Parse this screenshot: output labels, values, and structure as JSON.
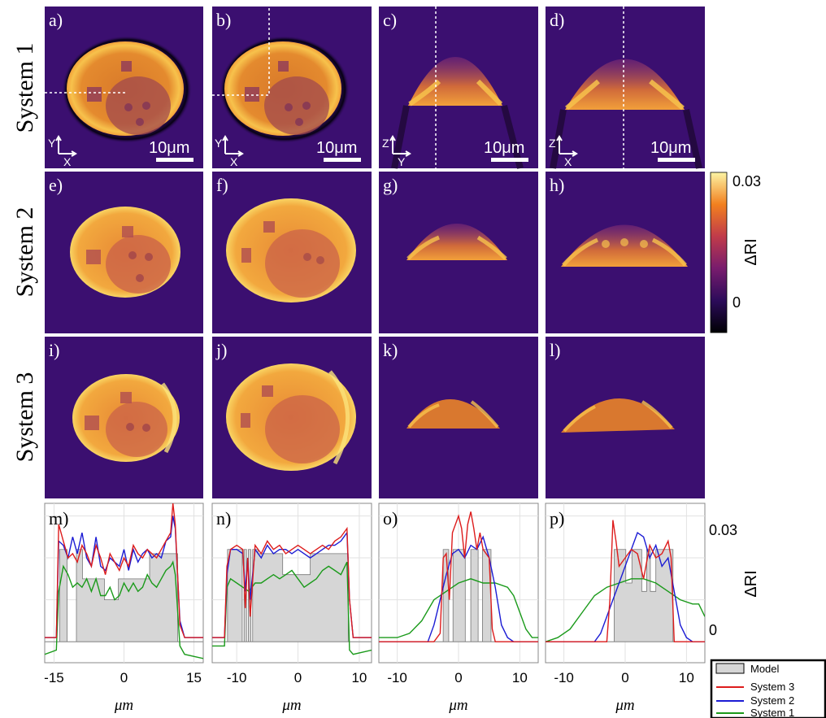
{
  "rows": [
    {
      "label": "System 1",
      "panels": [
        "a)",
        "b)",
        "c)",
        "d)"
      ]
    },
    {
      "label": "System 2",
      "panels": [
        "e)",
        "f)",
        "g)",
        "h)"
      ]
    },
    {
      "label": "System 3",
      "panels": [
        "i)",
        "j)",
        "k)",
        "l)"
      ]
    }
  ],
  "scale_bar": {
    "text": "10μm"
  },
  "axes_indicators": [
    {
      "vertical": "Y",
      "horizontal": "X"
    },
    {
      "vertical": "Y",
      "horizontal": "X"
    },
    {
      "vertical": "Z",
      "horizontal": "Y"
    },
    {
      "vertical": "Z",
      "horizontal": "X"
    }
  ],
  "colorbar": {
    "label": "ΔRI",
    "max_label": "0.03",
    "min_label": "0",
    "colormap": "inferno"
  },
  "profile_panels": [
    "m)",
    "n)",
    "o)",
    "p)"
  ],
  "profile_ylabel": "ΔRI",
  "profile_ytick_labels": [
    "0.03",
    "0"
  ],
  "colors": {
    "model_fill": "#d6d6d6",
    "system3": "#dd1c1c",
    "system2": "#1c1cd4",
    "system1": "#1a9a1a",
    "background_dark": "#3b0f70"
  },
  "chart_data": [
    {
      "type": "line",
      "panel": "m)",
      "xlabel": "μm",
      "ylabel": "",
      "xlim": [
        -17,
        17
      ],
      "ylim": [
        -0.005,
        0.033
      ],
      "xticks": [
        -15,
        0,
        15
      ],
      "xtick_labels": [
        "-15",
        "0",
        "15"
      ],
      "legend": [
        "Model",
        "System 3",
        "System 2",
        "System 1"
      ],
      "grid": true,
      "model": [
        [
          -17,
          0
        ],
        [
          -13.8,
          0
        ],
        [
          -13.8,
          0.022
        ],
        [
          -12.2,
          0.022
        ],
        [
          -12.2,
          0
        ],
        [
          -10.2,
          0
        ],
        [
          -10.2,
          0.022
        ],
        [
          -8.9,
          0.022
        ],
        [
          -8.9,
          0.015
        ],
        [
          -4.2,
          0.015
        ],
        [
          -4.2,
          0.01
        ],
        [
          -1.2,
          0.01
        ],
        [
          -1.2,
          0.015
        ],
        [
          5.5,
          0.015
        ],
        [
          5.5,
          0.021
        ],
        [
          11.5,
          0.021
        ],
        [
          11.5,
          0
        ],
        [
          17,
          0
        ]
      ],
      "series": [
        {
          "name": "System 3",
          "x": [
            -17,
            -14.5,
            -14,
            -13,
            -12,
            -11,
            -10,
            -9,
            -8,
            -7,
            -6,
            -5,
            -4,
            -3,
            -2,
            -1,
            0,
            1,
            2,
            3,
            4,
            5,
            6,
            7,
            8,
            9,
            10,
            10.5,
            11,
            12,
            13,
            17
          ],
          "y": [
            0.001,
            0.001,
            0.028,
            0.024,
            0.02,
            0.021,
            0.019,
            0.023,
            0.021,
            0.018,
            0.023,
            0.02,
            0.016,
            0.021,
            0.019,
            0.017,
            0.02,
            0.018,
            0.023,
            0.021,
            0.02,
            0.022,
            0.021,
            0.02,
            0.022,
            0.024,
            0.026,
            0.033,
            0.028,
            0.004,
            0.001,
            0.001
          ]
        },
        {
          "name": "System 2",
          "x": [
            -17,
            -14.5,
            -14,
            -13,
            -12,
            -11,
            -10,
            -9,
            -8,
            -7,
            -6,
            -5,
            -4,
            -3,
            -2,
            -1,
            0,
            1,
            2,
            3,
            4,
            5,
            6,
            7,
            8,
            9,
            10,
            10.5,
            11,
            12,
            13,
            17
          ],
          "y": [
            0.001,
            0.001,
            0.024,
            0.023,
            0.02,
            0.025,
            0.021,
            0.026,
            0.02,
            0.018,
            0.025,
            0.018,
            0.017,
            0.02,
            0.019,
            0.018,
            0.022,
            0.017,
            0.022,
            0.019,
            0.021,
            0.022,
            0.02,
            0.021,
            0.02,
            0.024,
            0.025,
            0.03,
            0.027,
            0.005,
            0.001,
            0.001
          ]
        },
        {
          "name": "System 1",
          "x": [
            -17,
            -14.5,
            -14,
            -13,
            -12,
            -11,
            -10,
            -9,
            -8,
            -7,
            -6,
            -5,
            -4,
            -3,
            -2,
            -1,
            0,
            1,
            2,
            3,
            4,
            5,
            6,
            7,
            8,
            9,
            10,
            10.5,
            11,
            12,
            13,
            17
          ],
          "y": [
            -0.003,
            -0.002,
            0.012,
            0.018,
            0.016,
            0.013,
            0.014,
            0.013,
            0.015,
            0.012,
            0.015,
            0.011,
            0.011,
            0.013,
            0.01,
            0.011,
            0.014,
            0.012,
            0.014,
            0.012,
            0.013,
            0.016,
            0.014,
            0.013,
            0.015,
            0.017,
            0.018,
            0.019,
            0.016,
            -0.001,
            -0.003,
            -0.004
          ]
        }
      ]
    },
    {
      "type": "line",
      "panel": "n)",
      "xlabel": "μm",
      "ylabel": "",
      "xlim": [
        -14,
        12
      ],
      "ylim": [
        -0.005,
        0.033
      ],
      "xticks": [
        -10,
        0,
        10
      ],
      "xtick_labels": [
        "-10",
        "0",
        "10"
      ],
      "grid": true,
      "model": [
        [
          -14,
          0
        ],
        [
          -11.5,
          0
        ],
        [
          -11.5,
          0.022
        ],
        [
          -9.1,
          0.022
        ],
        [
          -9.1,
          0
        ],
        [
          -8.8,
          0
        ],
        [
          -8.8,
          0.022
        ],
        [
          -8.4,
          0.022
        ],
        [
          -8.4,
          0
        ],
        [
          -8.1,
          0
        ],
        [
          -8.1,
          0.022
        ],
        [
          -7.7,
          0.022
        ],
        [
          -7.7,
          0
        ],
        [
          -7.4,
          0
        ],
        [
          -7.4,
          0.022
        ],
        [
          -6.5,
          0.022
        ],
        [
          -6.5,
          0.021
        ],
        [
          -2.5,
          0.021
        ],
        [
          -2.5,
          0.016
        ],
        [
          2,
          0.016
        ],
        [
          2,
          0.021
        ],
        [
          8.2,
          0.021
        ],
        [
          8.2,
          0
        ],
        [
          12,
          0
        ]
      ],
      "series": [
        {
          "name": "System 3",
          "x": [
            -14,
            -12,
            -11.6,
            -11,
            -10,
            -9,
            -8.6,
            -8.2,
            -7.8,
            -7,
            -6,
            -5,
            -4,
            -3,
            -2,
            -1,
            0,
            1,
            2,
            3,
            4,
            5,
            6,
            7,
            8,
            8.4,
            9,
            12
          ],
          "y": [
            0.001,
            0.001,
            0.018,
            0.022,
            0.023,
            0.022,
            0.008,
            0.02,
            0.006,
            0.023,
            0.021,
            0.024,
            0.022,
            0.023,
            0.021,
            0.022,
            0.023,
            0.022,
            0.021,
            0.022,
            0.023,
            0.022,
            0.024,
            0.025,
            0.027,
            0.01,
            0.001,
            0.001
          ]
        },
        {
          "name": "System 2",
          "x": [
            -14,
            -12,
            -11.6,
            -11,
            -10,
            -9,
            -8.6,
            -8.2,
            -7.8,
            -7,
            -6,
            -5,
            -4,
            -3,
            -2,
            -1,
            0,
            1,
            2,
            3,
            4,
            5,
            6,
            7,
            8,
            8.4,
            9,
            12
          ],
          "y": [
            0.001,
            0.001,
            0.016,
            0.022,
            0.022,
            0.021,
            0.012,
            0.02,
            0.01,
            0.022,
            0.02,
            0.023,
            0.021,
            0.022,
            0.022,
            0.021,
            0.022,
            0.021,
            0.02,
            0.021,
            0.022,
            0.023,
            0.023,
            0.024,
            0.026,
            0.01,
            0.001,
            0.001
          ]
        },
        {
          "name": "System 1",
          "x": [
            -14,
            -12,
            -11.6,
            -11,
            -10,
            -9,
            -8,
            -7,
            -6,
            -5,
            -4,
            -3,
            -2,
            -1,
            0,
            1,
            2,
            3,
            4,
            5,
            6,
            7,
            8,
            8.4,
            9,
            12
          ],
          "y": [
            -0.001,
            -0.001,
            0.013,
            0.015,
            0.014,
            0.013,
            0.012,
            0.014,
            0.014,
            0.015,
            0.016,
            0.015,
            0.016,
            0.017,
            0.015,
            0.013,
            0.014,
            0.015,
            0.017,
            0.018,
            0.017,
            0.016,
            0.019,
            -0.002,
            -0.003,
            -0.002
          ]
        }
      ]
    },
    {
      "type": "line",
      "panel": "o)",
      "xlabel": "μm",
      "ylabel": "",
      "xlim": [
        -13,
        13
      ],
      "ylim": [
        -0.005,
        0.033
      ],
      "xticks": [
        -10,
        0,
        10
      ],
      "xtick_labels": [
        "-10",
        "0",
        "10"
      ],
      "grid": true,
      "model": [
        [
          -13,
          0
        ],
        [
          -2.5,
          0
        ],
        [
          -2.5,
          0.022
        ],
        [
          -1.6,
          0.022
        ],
        [
          -1.6,
          0
        ],
        [
          -0.9,
          0
        ],
        [
          -0.9,
          0.022
        ],
        [
          1.1,
          0.022
        ],
        [
          1.1,
          0
        ],
        [
          2,
          0
        ],
        [
          2,
          0.022
        ],
        [
          3.2,
          0.022
        ],
        [
          3.2,
          0
        ],
        [
          3.9,
          0
        ],
        [
          3.9,
          0.022
        ],
        [
          5.3,
          0.022
        ],
        [
          5.3,
          0
        ],
        [
          13,
          0
        ]
      ],
      "series": [
        {
          "name": "System 3",
          "x": [
            -13,
            -4,
            -3,
            -2.5,
            -2,
            -1.5,
            -1,
            0,
            0.5,
            1,
            1.5,
            2,
            2.5,
            3,
            3.5,
            4,
            5,
            5.5,
            6,
            13
          ],
          "y": [
            0,
            0,
            0.002,
            0.02,
            0.021,
            0.01,
            0.026,
            0.03,
            0.027,
            0.02,
            0.028,
            0.031,
            0.027,
            0.022,
            0.026,
            0.022,
            0.02,
            0.003,
            0,
            0
          ]
        },
        {
          "name": "System 2",
          "x": [
            -13,
            -5,
            -4,
            -3,
            -2,
            -1,
            0,
            1,
            2,
            3,
            4,
            5,
            6,
            7,
            8,
            9,
            13
          ],
          "y": [
            0,
            0,
            0.004,
            0.01,
            0.016,
            0.021,
            0.022,
            0.02,
            0.023,
            0.022,
            0.025,
            0.02,
            0.013,
            0.004,
            0.001,
            0,
            0
          ]
        },
        {
          "name": "System 1",
          "x": [
            -13,
            -10,
            -8,
            -6,
            -4,
            -2,
            0,
            2,
            4,
            6,
            8,
            9,
            10,
            11,
            12,
            13
          ],
          "y": [
            0.001,
            0.001,
            0.002,
            0.005,
            0.01,
            0.012,
            0.014,
            0.015,
            0.014,
            0.014,
            0.013,
            0.011,
            0.007,
            0.003,
            0.001,
            0.001
          ]
        }
      ]
    },
    {
      "type": "line",
      "panel": "p)",
      "xlabel": "μm",
      "ylabel": "",
      "xlim": [
        -13,
        13
      ],
      "ylim": [
        -0.005,
        0.033
      ],
      "xticks": [
        -10,
        0,
        10
      ],
      "xtick_labels": [
        "-10",
        "0",
        "10"
      ],
      "grid": true,
      "model": [
        [
          -13,
          0
        ],
        [
          -1.8,
          0
        ],
        [
          -1.8,
          0.022
        ],
        [
          0.1,
          0.022
        ],
        [
          0.1,
          0.014
        ],
        [
          1.1,
          0.014
        ],
        [
          1.1,
          0.022
        ],
        [
          2.7,
          0.022
        ],
        [
          2.7,
          0.012
        ],
        [
          3.5,
          0.012
        ],
        [
          3.5,
          0.022
        ],
        [
          4.1,
          0.022
        ],
        [
          4.1,
          0.012
        ],
        [
          5,
          0.012
        ],
        [
          5,
          0.022
        ],
        [
          7.8,
          0.022
        ],
        [
          7.8,
          0
        ],
        [
          13,
          0
        ]
      ],
      "series": [
        {
          "name": "System 3",
          "x": [
            -13,
            -3,
            -2.5,
            -2,
            -1.5,
            -1,
            0,
            1,
            2,
            3,
            4,
            5,
            6,
            7,
            7.5,
            8,
            13
          ],
          "y": [
            0,
            0,
            0.01,
            0.029,
            0.024,
            0.018,
            0.02,
            0.022,
            0.021,
            0.015,
            0.023,
            0.02,
            0.021,
            0.024,
            0.02,
            0,
            0
          ]
        },
        {
          "name": "System 2",
          "x": [
            -13,
            -5,
            -4,
            -3,
            -2,
            -1,
            0,
            1,
            2,
            3,
            4,
            5,
            6,
            7,
            8,
            9,
            10,
            11,
            13
          ],
          "y": [
            0,
            0,
            0.002,
            0.006,
            0.01,
            0.014,
            0.018,
            0.022,
            0.026,
            0.025,
            0.02,
            0.023,
            0.018,
            0.02,
            0.012,
            0.004,
            0.001,
            0,
            0
          ]
        },
        {
          "name": "System 1",
          "x": [
            -13,
            -11,
            -9,
            -7,
            -5,
            -3,
            -1,
            1,
            3,
            5,
            7,
            9,
            11,
            12,
            13
          ],
          "y": [
            0,
            0.001,
            0.003,
            0.007,
            0.011,
            0.013,
            0.014,
            0.015,
            0.015,
            0.014,
            0.012,
            0.01,
            0.009,
            0.009,
            0.006
          ]
        }
      ]
    }
  ]
}
